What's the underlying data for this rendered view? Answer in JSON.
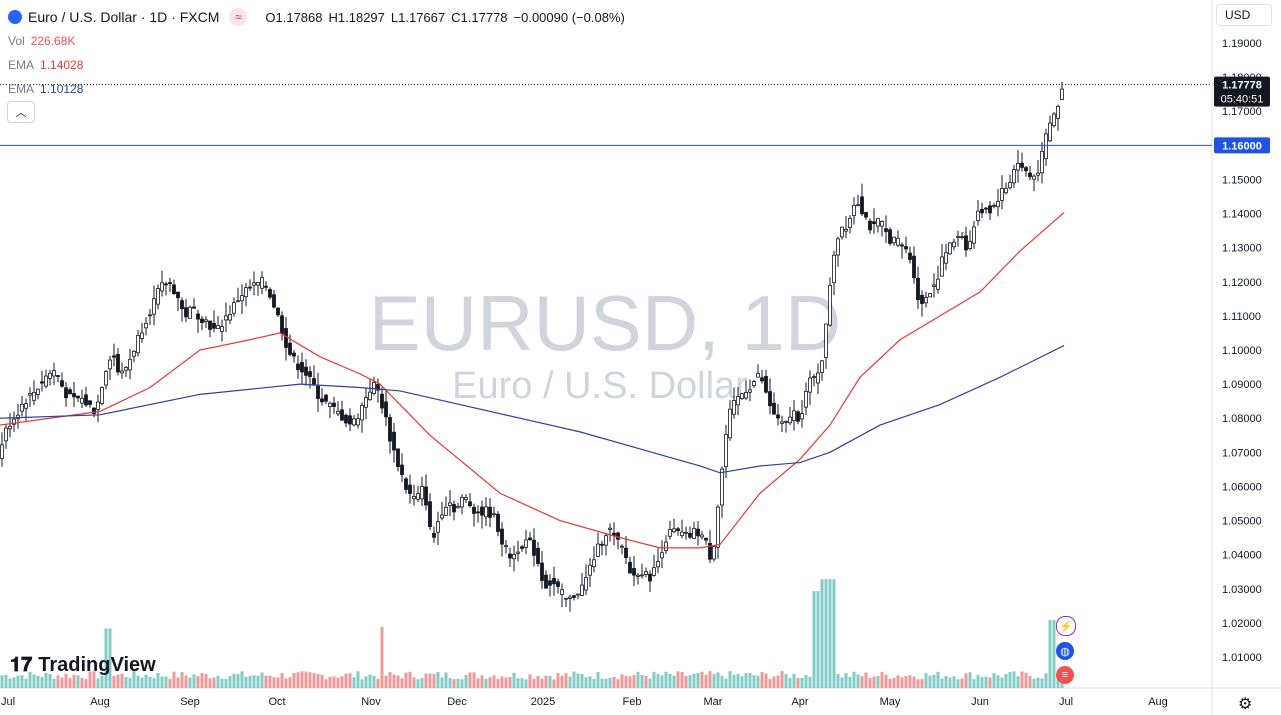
{
  "header": {
    "symbol_title": "Euro / U.S. Dollar · 1D · FXCM",
    "open_label": "O",
    "open": "1.17868",
    "high_label": "H",
    "high": "1.18297",
    "low_label": "L",
    "low": "1.17667",
    "close_label": "C",
    "close": "1.17778",
    "change": "−0.00090 (−0.08%)"
  },
  "indicators": {
    "vol_label": "Vol",
    "vol_value": "226.68K",
    "ema1_label": "EMA",
    "ema1_value": "1.14028",
    "ema2_label": "EMA",
    "ema2_value": "1.10128"
  },
  "currency": "USD",
  "watermark": {
    "title": "EURUSD, 1D",
    "subtitle": "Euro / U.S. Dollar"
  },
  "price_tag": {
    "value": "1.17778",
    "countdown": "05:40:51"
  },
  "hline_tag": "1.16000",
  "brand": "TradingView",
  "colors": {
    "up": "#26a69a",
    "down": "#131722",
    "ema_fast": "#e53935",
    "ema_slow": "#303f9f",
    "vol_up": "#80cbc4",
    "vol_down": "#ef9a9a",
    "hline": "#1e53e5"
  },
  "icons": [
    "chevron-up-icon",
    "settings-icon",
    "lightning-icon",
    "globe-icon",
    "flag-icon"
  ],
  "chart_data": {
    "type": "candlestick",
    "x_ticks": [
      "Jul",
      "Aug",
      "Sep",
      "Oct",
      "Nov",
      "Dec",
      "2025",
      "Feb",
      "Mar",
      "Apr",
      "May",
      "Jun",
      "Jul",
      "Aug"
    ],
    "y_ticks": [
      "1.19000",
      "1.18000",
      "1.17000",
      "1.16000",
      "1.15000",
      "1.14000",
      "1.13000",
      "1.12000",
      "1.11000",
      "1.10000",
      "1.09000",
      "1.08000",
      "1.07000",
      "1.06000",
      "1.05000",
      "1.04000",
      "1.03000",
      "1.02000",
      "1.01000"
    ],
    "ylim": [
      1.0,
      1.195
    ],
    "horizontal_line": 1.16,
    "last_price": 1.17778,
    "close_path": [
      [
        0,
        1.071
      ],
      [
        8,
        1.078
      ],
      [
        16,
        1.081
      ],
      [
        24,
        1.085
      ],
      [
        32,
        1.087
      ],
      [
        40,
        1.09
      ],
      [
        48,
        1.093
      ],
      [
        56,
        1.094
      ],
      [
        64,
        1.088
      ],
      [
        72,
        1.085
      ],
      [
        80,
        1.086
      ],
      [
        88,
        1.084
      ],
      [
        96,
        1.082
      ],
      [
        104,
        1.093
      ],
      [
        112,
        1.1
      ],
      [
        120,
        1.092
      ],
      [
        128,
        1.096
      ],
      [
        136,
        1.102
      ],
      [
        144,
        1.108
      ],
      [
        152,
        1.113
      ],
      [
        160,
        1.118
      ],
      [
        168,
        1.12
      ],
      [
        176,
        1.117
      ],
      [
        184,
        1.11
      ],
      [
        192,
        1.112
      ],
      [
        200,
        1.11
      ],
      [
        208,
        1.108
      ],
      [
        216,
        1.105
      ],
      [
        224,
        1.109
      ],
      [
        232,
        1.112
      ],
      [
        240,
        1.116
      ],
      [
        248,
        1.118
      ],
      [
        256,
        1.119
      ],
      [
        264,
        1.12
      ],
      [
        272,
        1.115
      ],
      [
        280,
        1.108
      ],
      [
        288,
        1.1
      ],
      [
        296,
        1.096
      ],
      [
        304,
        1.094
      ],
      [
        312,
        1.09
      ],
      [
        320,
        1.086
      ],
      [
        328,
        1.084
      ],
      [
        336,
        1.082
      ],
      [
        344,
        1.08
      ],
      [
        352,
        1.078
      ],
      [
        360,
        1.082
      ],
      [
        368,
        1.088
      ],
      [
        376,
        1.09
      ],
      [
        384,
        1.082
      ],
      [
        392,
        1.072
      ],
      [
        400,
        1.065
      ],
      [
        408,
        1.058
      ],
      [
        416,
        1.056
      ],
      [
        424,
        1.06
      ],
      [
        432,
        1.043
      ],
      [
        440,
        1.052
      ],
      [
        448,
        1.056
      ],
      [
        456,
        1.053
      ],
      [
        464,
        1.057
      ],
      [
        472,
        1.054
      ],
      [
        480,
        1.052
      ],
      [
        488,
        1.053
      ],
      [
        496,
        1.05
      ],
      [
        504,
        1.042
      ],
      [
        512,
        1.039
      ],
      [
        520,
        1.043
      ],
      [
        528,
        1.044
      ],
      [
        536,
        1.04
      ],
      [
        544,
        1.031
      ],
      [
        552,
        1.032
      ],
      [
        560,
        1.029
      ],
      [
        568,
        1.026
      ],
      [
        576,
        1.029
      ],
      [
        584,
        1.031
      ],
      [
        592,
        1.038
      ],
      [
        600,
        1.043
      ],
      [
        608,
        1.048
      ],
      [
        616,
        1.044
      ],
      [
        624,
        1.041
      ],
      [
        632,
        1.033
      ],
      [
        640,
        1.036
      ],
      [
        648,
        1.033
      ],
      [
        656,
        1.036
      ],
      [
        664,
        1.044
      ],
      [
        672,
        1.047
      ],
      [
        680,
        1.046
      ],
      [
        688,
        1.045
      ],
      [
        696,
        1.047
      ],
      [
        704,
        1.045
      ],
      [
        712,
        1.038
      ],
      [
        720,
        1.06
      ],
      [
        728,
        1.08
      ],
      [
        736,
        1.085
      ],
      [
        744,
        1.088
      ],
      [
        752,
        1.09
      ],
      [
        760,
        1.093
      ],
      [
        768,
        1.085
      ],
      [
        776,
        1.08
      ],
      [
        784,
        1.077
      ],
      [
        792,
        1.082
      ],
      [
        800,
        1.08
      ],
      [
        808,
        1.09
      ],
      [
        816,
        1.092
      ],
      [
        824,
        1.1
      ],
      [
        832,
        1.126
      ],
      [
        840,
        1.136
      ],
      [
        848,
        1.137
      ],
      [
        856,
        1.145
      ],
      [
        864,
        1.14
      ],
      [
        872,
        1.135
      ],
      [
        880,
        1.138
      ],
      [
        888,
        1.133
      ],
      [
        896,
        1.132
      ],
      [
        904,
        1.13
      ],
      [
        912,
        1.126
      ],
      [
        920,
        1.112
      ],
      [
        928,
        1.117
      ],
      [
        936,
        1.12
      ],
      [
        944,
        1.128
      ],
      [
        952,
        1.131
      ],
      [
        960,
        1.135
      ],
      [
        968,
        1.129
      ],
      [
        976,
        1.139
      ],
      [
        984,
        1.142
      ],
      [
        992,
        1.141
      ],
      [
        1000,
        1.146
      ],
      [
        1008,
        1.148
      ],
      [
        1016,
        1.155
      ],
      [
        1024,
        1.153
      ],
      [
        1032,
        1.15
      ],
      [
        1040,
        1.154
      ],
      [
        1048,
        1.165
      ],
      [
        1056,
        1.17
      ],
      [
        1064,
        1.1778
      ]
    ],
    "series": [
      {
        "name": "EMA",
        "points": [
          [
            0,
            1.078
          ],
          [
            50,
            1.08
          ],
          [
            100,
            1.082
          ],
          [
            150,
            1.089
          ],
          [
            200,
            1.1
          ],
          [
            250,
            1.103
          ],
          [
            280,
            1.105
          ],
          [
            320,
            1.098
          ],
          [
            360,
            1.093
          ],
          [
            380,
            1.09
          ],
          [
            430,
            1.075
          ],
          [
            500,
            1.058
          ],
          [
            560,
            1.05
          ],
          [
            620,
            1.045
          ],
          [
            660,
            1.042
          ],
          [
            700,
            1.042
          ],
          [
            720,
            1.043
          ],
          [
            760,
            1.058
          ],
          [
            800,
            1.068
          ],
          [
            830,
            1.078
          ],
          [
            860,
            1.092
          ],
          [
            900,
            1.103
          ],
          [
            940,
            1.11
          ],
          [
            980,
            1.117
          ],
          [
            1020,
            1.129
          ],
          [
            1064,
            1.1403
          ]
        ]
      },
      {
        "name": "EMA",
        "points": [
          [
            0,
            1.08
          ],
          [
            100,
            1.081
          ],
          [
            200,
            1.087
          ],
          [
            300,
            1.09
          ],
          [
            360,
            1.089
          ],
          [
            400,
            1.088
          ],
          [
            460,
            1.084
          ],
          [
            520,
            1.08
          ],
          [
            580,
            1.076
          ],
          [
            640,
            1.071
          ],
          [
            700,
            1.066
          ],
          [
            720,
            1.064
          ],
          [
            760,
            1.066
          ],
          [
            800,
            1.067
          ],
          [
            830,
            1.07
          ],
          [
            880,
            1.078
          ],
          [
            940,
            1.084
          ],
          [
            1000,
            1.092
          ],
          [
            1064,
            1.1013
          ]
        ]
      }
    ],
    "volume_peaks": [
      [
        108,
        0.35
      ],
      [
        382,
        0.36
      ],
      [
        816,
        0.57
      ],
      [
        824,
        0.64
      ],
      [
        832,
        0.64
      ],
      [
        1052,
        0.4
      ]
    ]
  }
}
